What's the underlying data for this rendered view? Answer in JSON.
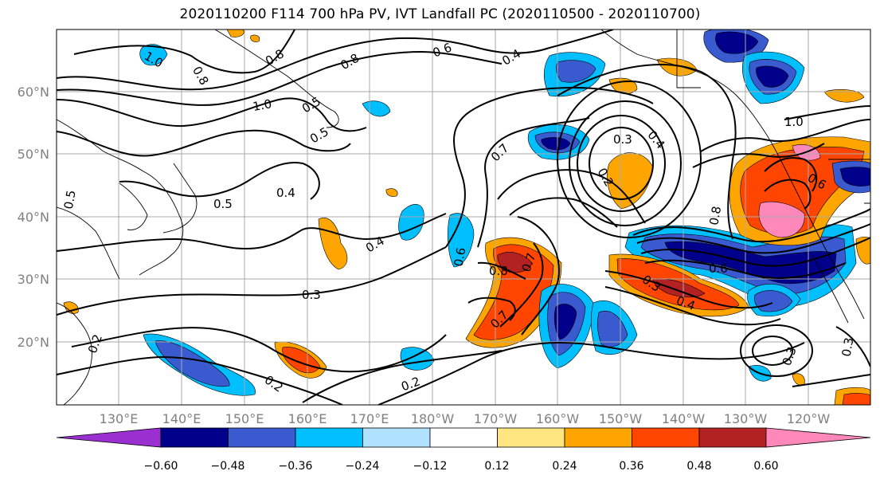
{
  "title": "2020110200 F114 700 hPa PV, IVT Landfall PC (2020110500 - 2020110700)",
  "axes": {
    "lat_labels": [
      "60°N",
      "50°N",
      "40°N",
      "30°N",
      "20°N"
    ],
    "lon_labels": [
      "130°E",
      "140°E",
      "150°E",
      "160°E",
      "170°E",
      "180°W",
      "170°W",
      "160°W",
      "150°W",
      "140°W",
      "130°W",
      "120°W"
    ]
  },
  "colorbar": {
    "tick_labels": [
      "−0.60",
      "−0.48",
      "−0.36",
      "−0.24",
      "−0.12",
      "0.12",
      "0.24",
      "0.36",
      "0.48",
      "0.60"
    ],
    "colors": [
      "#9b30d0",
      "#00008b",
      "#3a5bd0",
      "#00bfff",
      "#b0e2ff",
      "#ffffff",
      "#ffe680",
      "#ffa500",
      "#ff4500",
      "#b22222",
      "#ff88bb"
    ]
  },
  "contour_labels": [
    "1.0",
    "0.8",
    "0.6",
    "0.8",
    "0.4",
    "1.0",
    "0.5",
    "0.5",
    "0.8",
    "0.4",
    "0.5",
    "0.4",
    "0.3",
    "0.2",
    "0.2",
    "0.6",
    "0.8",
    "0.7",
    "0.7",
    "0.7",
    "0.3",
    "0.4",
    "0.2",
    "0.8",
    "0.6",
    "0.3",
    "0.4",
    "1.0",
    "0.6",
    "0.3",
    "0.3",
    "0.2",
    "0.5"
  ]
}
